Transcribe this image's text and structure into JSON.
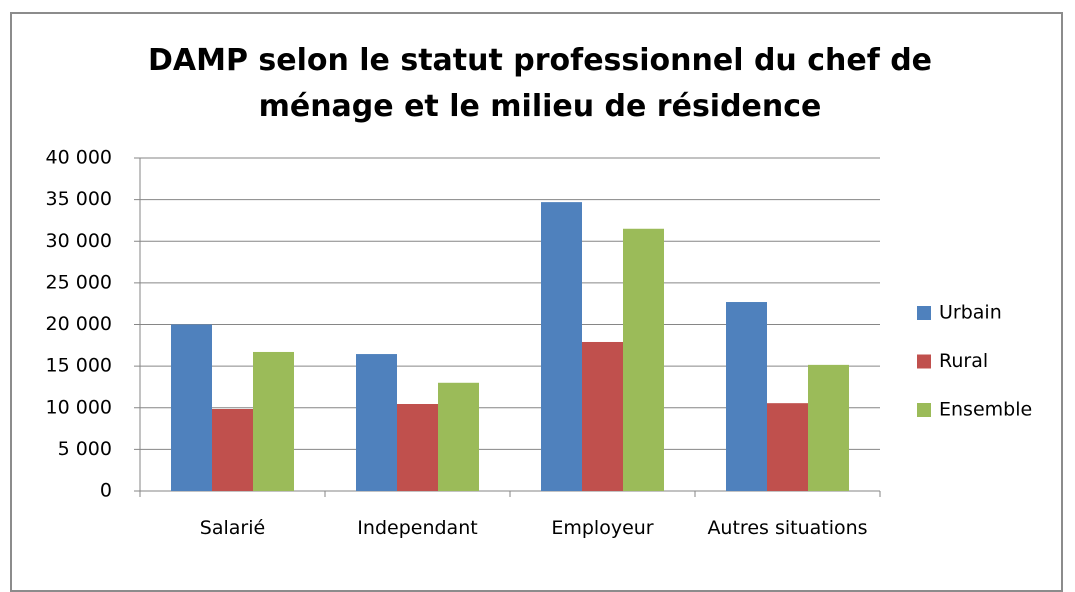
{
  "chart_data": {
    "type": "bar",
    "title": "DAMP selon le statut professionnel du chef de ménage et le milieu de résidence",
    "categories": [
      "Salarié",
      "Independant",
      "Employeur",
      "Autres situations"
    ],
    "series": [
      {
        "name": "Urbain",
        "color": "#4f81bd",
        "values": [
          20000,
          16450,
          34700,
          22700
        ]
      },
      {
        "name": "Rural",
        "color": "#c0504d",
        "values": [
          9850,
          10450,
          17900,
          10550
        ]
      },
      {
        "name": "Ensemble",
        "color": "#9bbb59",
        "values": [
          16700,
          13000,
          31500,
          15150
        ]
      }
    ],
    "ylim": [
      0,
      40000
    ],
    "yticks": [
      0,
      {
        "value": 5000,
        "label": "5 000"
      },
      {
        "value": 10000,
        "label": "10 000"
      },
      {
        "value": 15000,
        "label": "15 000"
      },
      {
        "value": 20000,
        "label": "20 000"
      },
      {
        "value": 25000,
        "label": "25 000"
      },
      {
        "value": 30000,
        "label": "30 000"
      },
      {
        "value": 35000,
        "label": "35 000"
      },
      {
        "value": 40000,
        "label": "40 000"
      }
    ],
    "grid": true,
    "legend": "right"
  }
}
